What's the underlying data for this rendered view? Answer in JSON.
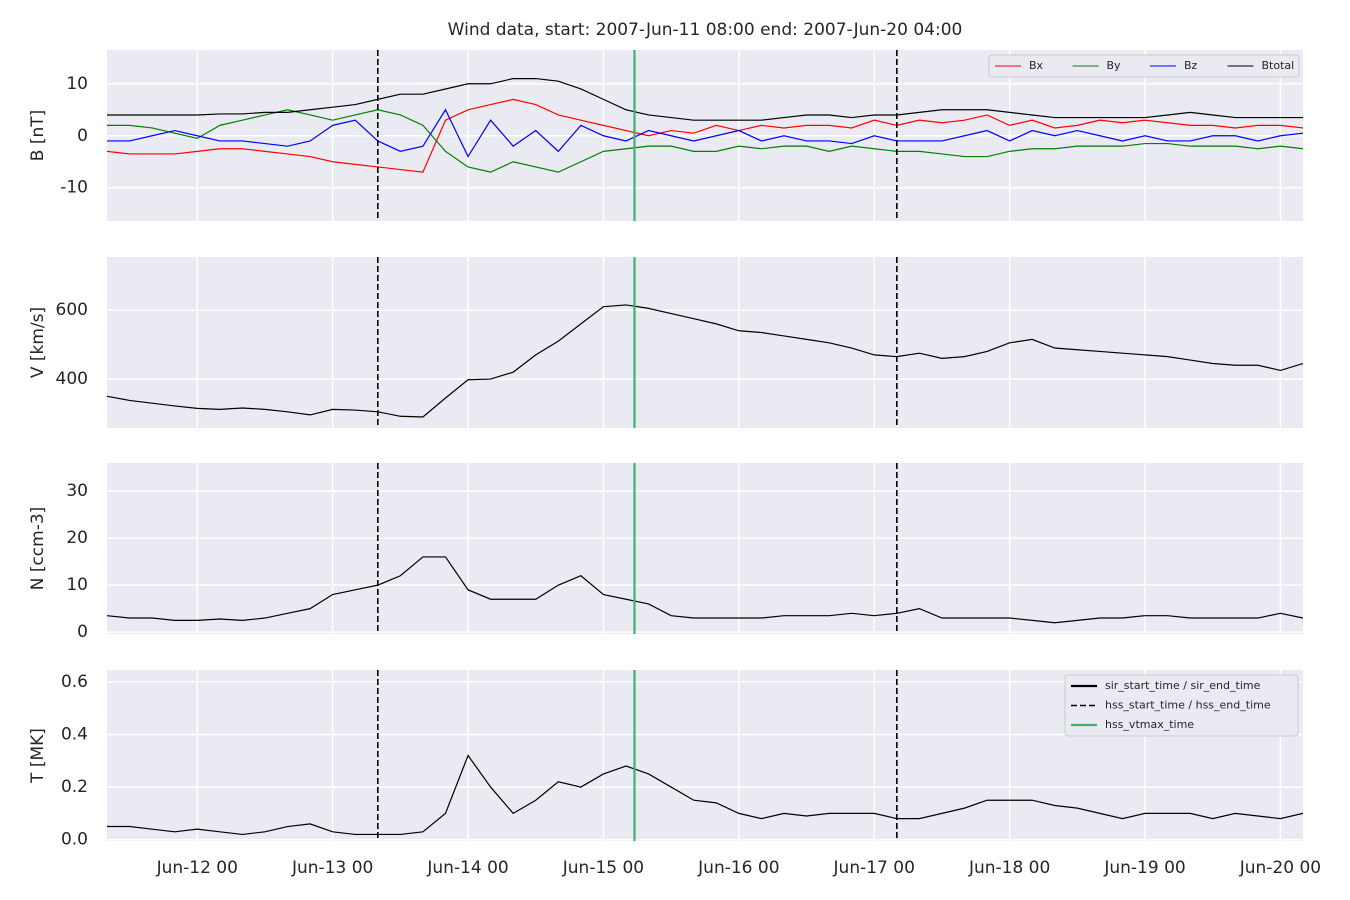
{
  "chart_data": {
    "type": "line",
    "title": "Wind data, start: 2007-Jun-11 08:00  end: 2007-Jun-20 04:00",
    "x": [
      "2007-06-11T08:00",
      "2007-06-11T12:00",
      "2007-06-11T16:00",
      "2007-06-11T20:00",
      "2007-06-12T00:00",
      "2007-06-12T04:00",
      "2007-06-12T08:00",
      "2007-06-12T12:00",
      "2007-06-12T16:00",
      "2007-06-12T20:00",
      "2007-06-13T00:00",
      "2007-06-13T04:00",
      "2007-06-13T08:00",
      "2007-06-13T12:00",
      "2007-06-13T16:00",
      "2007-06-13T20:00",
      "2007-06-14T00:00",
      "2007-06-14T04:00",
      "2007-06-14T08:00",
      "2007-06-14T12:00",
      "2007-06-14T16:00",
      "2007-06-14T20:00",
      "2007-06-15T00:00",
      "2007-06-15T04:00",
      "2007-06-15T08:00",
      "2007-06-15T12:00",
      "2007-06-15T16:00",
      "2007-06-15T20:00",
      "2007-06-16T00:00",
      "2007-06-16T04:00",
      "2007-06-16T08:00",
      "2007-06-16T12:00",
      "2007-06-16T16:00",
      "2007-06-16T20:00",
      "2007-06-17T00:00",
      "2007-06-17T04:00",
      "2007-06-17T08:00",
      "2007-06-17T12:00",
      "2007-06-17T16:00",
      "2007-06-17T20:00",
      "2007-06-18T00:00",
      "2007-06-18T04:00",
      "2007-06-18T08:00",
      "2007-06-18T12:00",
      "2007-06-18T16:00",
      "2007-06-18T20:00",
      "2007-06-19T00:00",
      "2007-06-19T04:00",
      "2007-06-19T08:00",
      "2007-06-19T12:00",
      "2007-06-19T16:00",
      "2007-06-19T20:00",
      "2007-06-20T00:00",
      "2007-06-20T04:00"
    ],
    "xlim": [
      "2007-06-11T08:00",
      "2007-06-20T04:00"
    ],
    "xticks": [
      {
        "value": "2007-06-12T00:00",
        "label": "Jun-12 00"
      },
      {
        "value": "2007-06-13T00:00",
        "label": "Jun-13 00"
      },
      {
        "value": "2007-06-14T00:00",
        "label": "Jun-14 00"
      },
      {
        "value": "2007-06-15T00:00",
        "label": "Jun-15 00"
      },
      {
        "value": "2007-06-16T00:00",
        "label": "Jun-16 00"
      },
      {
        "value": "2007-06-17T00:00",
        "label": "Jun-17 00"
      },
      {
        "value": "2007-06-18T00:00",
        "label": "Jun-18 00"
      },
      {
        "value": "2007-06-19T00:00",
        "label": "Jun-19 00"
      },
      {
        "value": "2007-06-20T00:00",
        "label": "Jun-20 00"
      }
    ],
    "grid": true,
    "event_lines": [
      {
        "name": "sir_start_time / sir_end_time",
        "color": "#000000",
        "style": "solid",
        "x": []
      },
      {
        "name": "hss_start_time / hss_end_time",
        "color": "#000000",
        "style": "dashed",
        "x": [
          "2007-06-13T08:00",
          "2007-06-17T04:00"
        ]
      },
      {
        "name": "hss_vtmax_time",
        "color": "#3cb371",
        "style": "solid",
        "x": [
          "2007-06-15T05:30"
        ]
      }
    ],
    "event_legend": {
      "panel": 3,
      "loc": "upper right"
    },
    "panels": [
      {
        "ylabel": "B [nT]",
        "ylim": [
          -16.4,
          16.5
        ],
        "yticks": [
          -10,
          0,
          10
        ],
        "legend": "upper right",
        "series": [
          {
            "name": "Bx",
            "color": "#ff0000",
            "values": [
              -3,
              -3.5,
              -3.5,
              -3.5,
              -3,
              -2.5,
              -2.5,
              -3,
              -3.5,
              -4,
              -5,
              -5.5,
              -6,
              -6.5,
              -7,
              3,
              5,
              6,
              7,
              6,
              4,
              3,
              2,
              1,
              0,
              1,
              0.5,
              2,
              1,
              2,
              1.5,
              2,
              2,
              1.5,
              3,
              2,
              3,
              2.5,
              3,
              4,
              2,
              3,
              1.5,
              2,
              3,
              2.5,
              3,
              2.5,
              2,
              2,
              1.5,
              2,
              2,
              1.5
            ]
          },
          {
            "name": "By",
            "color": "#008000",
            "values": [
              2,
              2,
              1.5,
              0.5,
              -0.5,
              2,
              3,
              4,
              5,
              4,
              3,
              4,
              5,
              4,
              2,
              -3,
              -6,
              -7,
              -5,
              -6,
              -7,
              -5,
              -3,
              -2.5,
              -2,
              -2,
              -3,
              -3,
              -2,
              -2.5,
              -2,
              -2,
              -3,
              -2,
              -2.5,
              -3,
              -3,
              -3.5,
              -4,
              -4,
              -3,
              -2.5,
              -2.5,
              -2,
              -2,
              -2,
              -1.5,
              -1.5,
              -2,
              -2,
              -2,
              -2.5,
              -2,
              -2.5
            ]
          },
          {
            "name": "Bz",
            "color": "#0000ff",
            "values": [
              -1,
              -1,
              0,
              1,
              0,
              -1,
              -1,
              -1.5,
              -2,
              -1,
              2,
              3,
              -1,
              -3,
              -2,
              5,
              -4,
              3,
              -2,
              1,
              -3,
              2,
              0,
              -1,
              1,
              0,
              -1,
              0,
              1,
              -1,
              0,
              -1,
              -1,
              -1.5,
              0,
              -1,
              -1,
              -1,
              0,
              1,
              -1,
              1,
              0,
              1,
              0,
              -1,
              0,
              -1,
              -1,
              0,
              0,
              -1,
              0,
              0.5
            ]
          },
          {
            "name": "Btotal",
            "color": "#000000",
            "values": [
              4,
              4,
              4,
              4,
              4,
              4.2,
              4.2,
              4.5,
              4.5,
              5,
              5.5,
              6,
              7,
              8,
              8,
              9,
              10,
              10,
              11,
              11,
              10.5,
              9,
              7,
              5,
              4,
              3.5,
              3,
              3,
              3,
              3,
              3.5,
              4,
              4,
              3.5,
              4,
              4,
              4.5,
              5,
              5,
              5,
              4.5,
              4,
              3.5,
              3.5,
              3.5,
              3.5,
              3.5,
              4,
              4.5,
              4,
              3.5,
              3.5,
              3.5,
              3.5
            ]
          }
        ]
      },
      {
        "ylabel": "V [km/s]",
        "ylim": [
          258,
          754
        ],
        "yticks": [
          400,
          600
        ],
        "series": [
          {
            "color": "#000000",
            "values": [
              350,
              338,
              330,
              322,
              315,
              312,
              316,
              312,
              305,
              296,
              312,
              310,
              305,
              292,
              290,
              345,
              398,
              400,
              420,
              470,
              510,
              560,
              610,
              615,
              605,
              590,
              575,
              560,
              540,
              535,
              525,
              515,
              505,
              490,
              470,
              465,
              475,
              460,
              465,
              480,
              505,
              515,
              490,
              485,
              480,
              475,
              470,
              465,
              455,
              445,
              440,
              440,
              425,
              445
            ]
          }
        ]
      },
      {
        "ylabel": "N [ccm-3]",
        "ylim": [
          -0.4,
          36
        ],
        "yticks": [
          0,
          10,
          20,
          30
        ],
        "series": [
          {
            "color": "#000000",
            "values": [
              3.5,
              3,
              3,
              2.5,
              2.5,
              2.8,
              2.5,
              3,
              4,
              5,
              8,
              9,
              10,
              12,
              16,
              16,
              9,
              7,
              7,
              7,
              10,
              12,
              8,
              7,
              6,
              3.5,
              3,
              3,
              3,
              3,
              3.5,
              3.5,
              3.5,
              4,
              3.5,
              4,
              5,
              3,
              3,
              3,
              3,
              2.5,
              2,
              2.5,
              3,
              3,
              3.5,
              3.5,
              3,
              3,
              3,
              3,
              4,
              3
            ]
          }
        ]
      },
      {
        "ylabel": "T [MK]",
        "ylim": [
          -0.005,
          0.645
        ],
        "yticks": [
          {
            "value": 0,
            "label": "0.0"
          },
          0.2,
          0.4,
          0.6
        ],
        "series": [
          {
            "color": "#000000",
            "values": [
              0.05,
              0.05,
              0.04,
              0.03,
              0.04,
              0.03,
              0.02,
              0.03,
              0.05,
              0.06,
              0.03,
              0.02,
              0.02,
              0.02,
              0.03,
              0.1,
              0.32,
              0.2,
              0.1,
              0.15,
              0.22,
              0.2,
              0.25,
              0.28,
              0.25,
              0.2,
              0.15,
              0.14,
              0.1,
              0.08,
              0.1,
              0.09,
              0.1,
              0.1,
              0.1,
              0.08,
              0.08,
              0.1,
              0.12,
              0.15,
              0.15,
              0.15,
              0.13,
              0.12,
              0.1,
              0.08,
              0.1,
              0.1,
              0.1,
              0.08,
              0.1,
              0.09,
              0.08,
              0.1
            ]
          }
        ]
      }
    ]
  }
}
